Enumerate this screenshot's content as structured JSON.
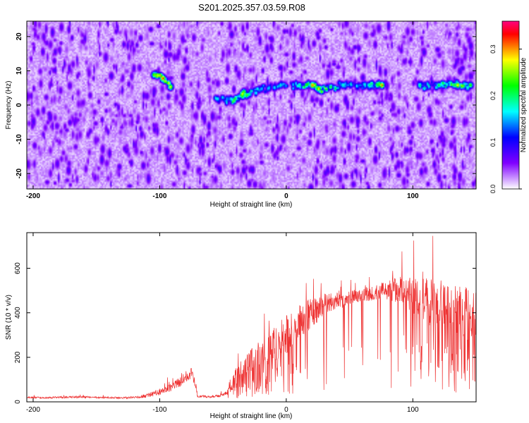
{
  "figure_title": "S201.2025.357.03.59.R08",
  "chart_data": [
    {
      "type": "heatmap",
      "title": "",
      "xlabel": "Height of straight line (km)",
      "ylabel": "Frequency (Hz)",
      "xlim": [
        -205,
        150
      ],
      "ylim": [
        -24.5,
        24.5
      ],
      "xticks": [
        -200,
        -100,
        0,
        100
      ],
      "yticks": [
        -20,
        -10,
        0,
        10,
        20
      ],
      "colorbar": {
        "label": "Normalized spectral amplitude",
        "range": [
          0.0,
          0.36
        ],
        "ticks": [
          0.0,
          0.1,
          0.2,
          0.3
        ],
        "colormap": [
          "#ffffff",
          "#c080ff",
          "#8000ff",
          "#4000ff",
          "#0000ff",
          "#0080ff",
          "#00ffff",
          "#00ff80",
          "#00ff00",
          "#80ff00",
          "#ffff00",
          "#ff8000",
          "#ff0000",
          "#ff0080"
        ]
      },
      "background_level": 0.05,
      "ridge": [
        {
          "x": -105,
          "f": 9,
          "a": 0.26
        },
        {
          "x": -98,
          "f": 8,
          "a": 0.34
        },
        {
          "x": -92,
          "f": 5.5,
          "a": 0.28
        },
        {
          "x": -55,
          "f": 2,
          "a": 0.18
        },
        {
          "x": -42,
          "f": 1.5,
          "a": 0.24
        },
        {
          "x": -35,
          "f": 3.5,
          "a": 0.28
        },
        {
          "x": -20,
          "f": 5,
          "a": 0.16
        },
        {
          "x": -5,
          "f": 6,
          "a": 0.18
        },
        {
          "x": 10,
          "f": 6,
          "a": 0.2
        },
        {
          "x": 20,
          "f": 6,
          "a": 0.32
        },
        {
          "x": 25,
          "f": 5,
          "a": 0.3
        },
        {
          "x": 45,
          "f": 6,
          "a": 0.18
        },
        {
          "x": 65,
          "f": 6,
          "a": 0.2
        },
        {
          "x": 75,
          "f": 6,
          "a": 0.32
        },
        {
          "x": 105,
          "f": 6,
          "a": 0.2
        },
        {
          "x": 120,
          "f": 6,
          "a": 0.22
        },
        {
          "x": 135,
          "f": 6,
          "a": 0.3
        },
        {
          "x": 145,
          "f": 6,
          "a": 0.24
        }
      ]
    },
    {
      "type": "line",
      "title": "",
      "xlabel": "Height of straight line (km)",
      "ylabel": "SNR (10 * v/v)",
      "xlim": [
        -205,
        150
      ],
      "ylim": [
        0,
        760
      ],
      "xticks": [
        -200,
        -100,
        0,
        100
      ],
      "yticks": [
        0,
        200,
        400,
        600
      ],
      "line_color": "#ee3333",
      "series": [
        {
          "name": "",
          "x": [
            -205,
            -190,
            -170,
            -150,
            -130,
            -115,
            -105,
            -95,
            -85,
            -80,
            -75,
            -72,
            -70,
            -60,
            -50,
            -45,
            -40,
            -30,
            -20,
            -10,
            0,
            5,
            10,
            20,
            30,
            40,
            45,
            50,
            60,
            70,
            80,
            90,
            95,
            100,
            105,
            110,
            120,
            130,
            140,
            150
          ],
          "y": [
            20,
            18,
            22,
            20,
            18,
            22,
            35,
            55,
            85,
            110,
            130,
            90,
            25,
            22,
            30,
            55,
            110,
            170,
            220,
            250,
            300,
            330,
            360,
            400,
            440,
            455,
            450,
            470,
            480,
            490,
            500,
            510,
            490,
            470,
            460,
            450,
            440,
            420,
            400,
            380
          ],
          "spread": [
            8,
            8,
            10,
            8,
            8,
            12,
            25,
            35,
            45,
            50,
            55,
            45,
            10,
            10,
            15,
            40,
            90,
            110,
            140,
            160,
            180,
            160,
            150,
            140,
            100,
            70,
            60,
            60,
            60,
            70,
            90,
            130,
            150,
            180,
            200,
            210,
            220,
            230,
            240,
            250
          ],
          "dropout": [
            0,
            0,
            0,
            0,
            0,
            0,
            0,
            0,
            0,
            0,
            0,
            0,
            0,
            0,
            0,
            0.2,
            0.3,
            0.3,
            0.35,
            0.35,
            0.3,
            0.25,
            0.2,
            0.15,
            0.1,
            0.05,
            0.05,
            0.05,
            0.05,
            0.05,
            0.1,
            0.15,
            0.2,
            0.25,
            0.25,
            0.25,
            0.25,
            0.25,
            0.25,
            0.25
          ]
        }
      ]
    }
  ]
}
